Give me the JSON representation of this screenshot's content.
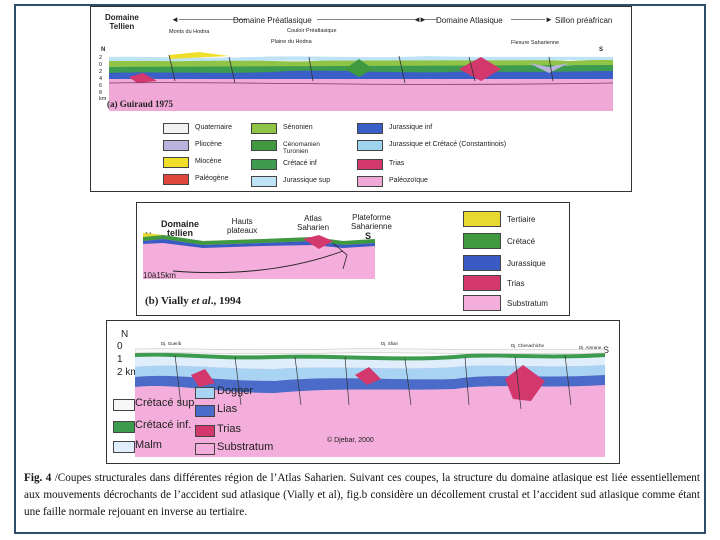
{
  "colors": {
    "quaternaire": "#f2f2f2",
    "pliocene": "#b9b3dd",
    "miocene": "#f0df2a",
    "paleogene": "#e0473c",
    "senonien": "#8fc447",
    "cenomanien": "#3f9a3f",
    "cretace_inf": "#3c9b4e",
    "jurassique_sup": "#bfe3f6",
    "jurassique_inf": "#3b5fc8",
    "jurassique_cretace": "#9fd4ef",
    "trias": "#d2386c",
    "paleozoique": "#f0a8d6",
    "tertiaire": "#e8d930",
    "cretace": "#3f9a3f",
    "jurassique": "#3a5bc4",
    "substratum": "#f3aedb",
    "dogger": "#a9d3f2",
    "lias": "#4a6bc8",
    "malm": "#dfeefa",
    "cretace_sup": "#f7f7f7"
  },
  "panel_a": {
    "domaine_tellien": "Domaine\nTellien",
    "domaine_preatlasique": "Domaine Préatlasique",
    "domaine_atlasique": "Domaine Atlasique",
    "sillon_preafricain": "Sillon préafrican",
    "monts_hodna": "Monts du Hodna",
    "couloir_preatlasique": "Couloir Préatlasique",
    "plaine_hodna": "Plaine du Hodna",
    "flexure_saharienne": "Flexure Saharienne",
    "n": "N",
    "s": "S",
    "depth_ticks": [
      "2",
      "0",
      "2",
      "4",
      "6",
      "8",
      "km"
    ],
    "caption": "(a) Guiraud 1975",
    "legend": [
      {
        "label": "Quaternaire",
        "color_key": "quaternaire"
      },
      {
        "label": "Sénonien",
        "color_key": "senonien"
      },
      {
        "label": "Jurassique inf",
        "color_key": "jurassique_inf"
      },
      {
        "label": "Pliocène",
        "color_key": "pliocene"
      },
      {
        "label": "Cénomanien\nTuronien",
        "color_key": "cenomanien"
      },
      {
        "label": "Jurassique et Crétacé (Constantinois)",
        "color_key": "jurassique_cretace"
      },
      {
        "label": "Miocène",
        "color_key": "miocene"
      },
      {
        "label": "Crétacé inf",
        "color_key": "cretace_inf"
      },
      {
        "label": "Trias",
        "color_key": "trias"
      },
      {
        "label": "Paléogène",
        "color_key": "paleogene"
      },
      {
        "label": "Jurassique sup",
        "color_key": "jurassique_sup"
      },
      {
        "label": "Paléozoïque",
        "color_key": "paleozoique"
      }
    ]
  },
  "panel_b": {
    "domaine_tellien": "Domaine\ntellien",
    "hauts_plateaux": "Hauts\nplateaux",
    "atlas_saharien": "Atlas\nSaharien",
    "plateforme_saharienne": "Plateforme\nSaharienne",
    "n": "N",
    "s": "S",
    "depth": "10à15km",
    "caption_prefix": "(b) Vially ",
    "caption_italic": "et al",
    "caption_suffix": "., 1994",
    "legend": [
      {
        "label": "Tertiaire",
        "color_key": "tertiaire"
      },
      {
        "label": "Crétacé",
        "color_key": "cretace"
      },
      {
        "label": "Jurassique",
        "color_key": "jurassique"
      },
      {
        "label": "Trias",
        "color_key": "trias"
      },
      {
        "label": "Substratum",
        "color_key": "substratum"
      }
    ]
  },
  "panel_c": {
    "n": "N",
    "s": "S",
    "depth_ticks": [
      "0",
      "1",
      "2 km"
    ],
    "site_1": "Dj. Guerib",
    "site_2": "Dj. Sfian",
    "site_3": "Dj. Chenachiche",
    "site_4": "Dj. Amrane",
    "copyright": "© Djebar, 2000",
    "legend_left": [
      {
        "label": "Crétacé sup.",
        "color_key": "cretace_sup"
      },
      {
        "label": "Crétacé inf.",
        "color_key": "cretace_inf"
      },
      {
        "label": "Malm",
        "color_key": "malm"
      }
    ],
    "legend_right": [
      {
        "label": "Dogger",
        "color_key": "dogger"
      },
      {
        "label": "Lias",
        "color_key": "lias"
      },
      {
        "label": "Trias",
        "color_key": "trias"
      },
      {
        "label": "Substratum",
        "color_key": "substratum"
      }
    ]
  },
  "caption": {
    "label": "Fig.  4",
    "text": "  /Coupes structurales dans différentes région de l’Atlas Saharien. Suivant ces coupes, la structure du domaine atlasique est liée essentiellement aux mouvements décrochants de l’accident sud atlasique (Vially et al), fig.b considère un décollement crustal et l’accident sud atlasique comme étant une faille normale rejouant en inverse au tertiaire."
  }
}
